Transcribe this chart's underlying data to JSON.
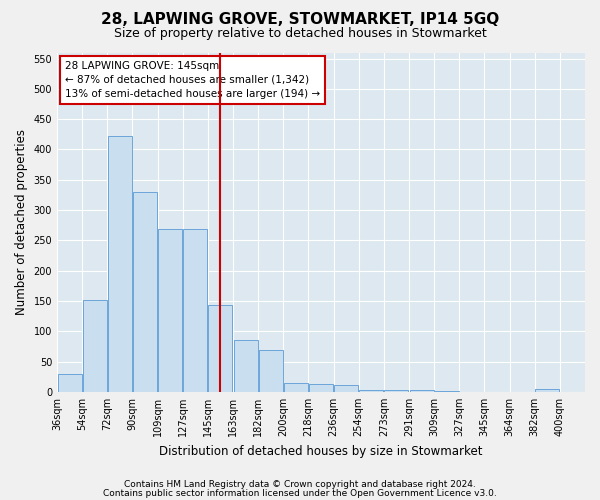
{
  "title": "28, LAPWING GROVE, STOWMARKET, IP14 5GQ",
  "subtitle": "Size of property relative to detached houses in Stowmarket",
  "xlabel": "Distribution of detached houses by size in Stowmarket",
  "ylabel": "Number of detached properties",
  "footnote1": "Contains HM Land Registry data © Crown copyright and database right 2024.",
  "footnote2": "Contains public sector information licensed under the Open Government Licence v3.0.",
  "annotation_line1": "28 LAPWING GROVE: 145sqm",
  "annotation_line2": "← 87% of detached houses are smaller (1,342)",
  "annotation_line3": "13% of semi-detached houses are larger (194) →",
  "bar_color": "#c9dff0",
  "bar_edge_color": "#5b9bd5",
  "ref_line_color": "#cc0000",
  "ref_line_x": 144,
  "categories": [
    "36sqm",
    "54sqm",
    "72sqm",
    "90sqm",
    "109sqm",
    "127sqm",
    "145sqm",
    "163sqm",
    "182sqm",
    "200sqm",
    "218sqm",
    "236sqm",
    "254sqm",
    "273sqm",
    "291sqm",
    "309sqm",
    "327sqm",
    "345sqm",
    "364sqm",
    "382sqm",
    "400sqm"
  ],
  "bin_edges": [
    27,
    45,
    63,
    81,
    99,
    117,
    135,
    153,
    171,
    189,
    207,
    225,
    243,
    261,
    279,
    297,
    315,
    333,
    351,
    369,
    387,
    405
  ],
  "values": [
    30,
    152,
    422,
    330,
    268,
    268,
    143,
    85,
    70,
    15,
    13,
    11,
    4,
    4,
    3,
    1,
    0,
    0,
    0,
    5,
    0
  ],
  "ylim": [
    0,
    560
  ],
  "yticks": [
    0,
    50,
    100,
    150,
    200,
    250,
    300,
    350,
    400,
    450,
    500,
    550
  ],
  "bar_color_highlight": "#c9dff0",
  "background_color": "#dde8f0",
  "plot_bg_color": "#dde8f0",
  "grid_color": "#ffffff",
  "fig_bg_color": "#f0f0f0",
  "title_fontsize": 11,
  "subtitle_fontsize": 9,
  "axis_label_fontsize": 8.5,
  "tick_fontsize": 7,
  "annotation_fontsize": 7.5,
  "footnote_fontsize": 6.5
}
